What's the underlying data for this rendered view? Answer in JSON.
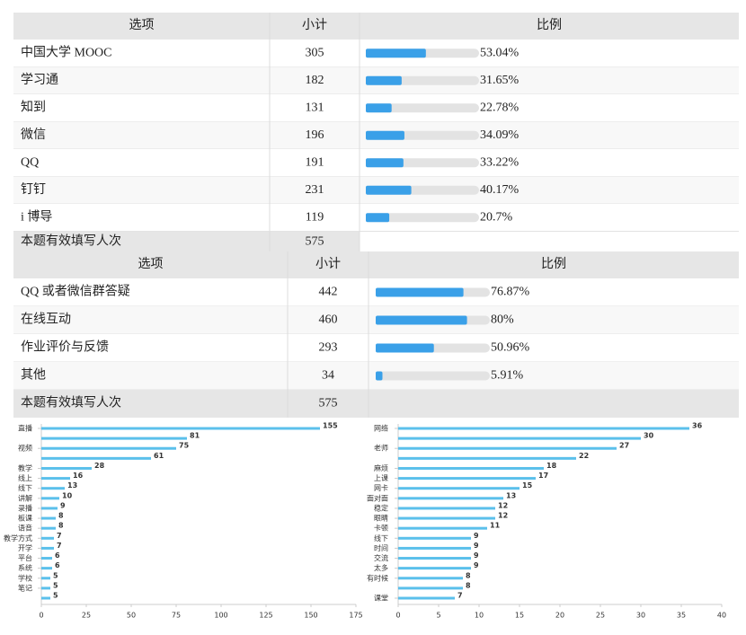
{
  "tables": [
    {
      "headers": [
        "选项",
        "小计",
        "比例"
      ],
      "rows": [
        {
          "option": "中国大学 MOOC",
          "count": 305,
          "ratio": 53.04,
          "ratio_label": "53.04%"
        },
        {
          "option": "学习通",
          "count": 182,
          "ratio": 31.65,
          "ratio_label": "31.65%"
        },
        {
          "option": "知到",
          "count": 131,
          "ratio": 22.78,
          "ratio_label": "22.78%"
        },
        {
          "option": "微信",
          "count": 196,
          "ratio": 34.09,
          "ratio_label": "34.09%"
        },
        {
          "option": "QQ",
          "count": 191,
          "ratio": 33.22,
          "ratio_label": "33.22%"
        },
        {
          "option": "钉钉",
          "count": 231,
          "ratio": 40.17,
          "ratio_label": "40.17%"
        },
        {
          "option": "i 博导",
          "count": 119,
          "ratio": 20.7,
          "ratio_label": "20.7%"
        }
      ],
      "total": {
        "option": "本题有效填写人次",
        "count": 575
      }
    },
    {
      "headers": [
        "选项",
        "小计",
        "比例"
      ],
      "rows": [
        {
          "option": "QQ 或者微信群答疑",
          "count": 442,
          "ratio": 76.87,
          "ratio_label": "76.87%"
        },
        {
          "option": "在线互动",
          "count": 460,
          "ratio": 80,
          "ratio_label": "80%"
        },
        {
          "option": "作业评价与反馈",
          "count": 293,
          "ratio": 50.96,
          "ratio_label": "50.96%"
        },
        {
          "option": "其他",
          "count": 34,
          "ratio": 5.91,
          "ratio_label": "5.91%"
        }
      ],
      "total": {
        "option": "本题有效填写人次",
        "count": 575
      }
    }
  ],
  "chart_data": [
    {
      "type": "hbar",
      "color": "#5bc0eb",
      "categories": [
        "直播",
        null,
        "视频",
        null,
        "教学",
        "线上",
        "线下",
        "讲解",
        "录播",
        "板课",
        "语音",
        "教学方式",
        "开学",
        "平台",
        "系统",
        "学校",
        "笔记",
        null
      ],
      "values": [
        155,
        81,
        75,
        61,
        28,
        16,
        13,
        10,
        9,
        8,
        8,
        7,
        7,
        6,
        6,
        5,
        5,
        5
      ],
      "xlim": [
        0,
        175
      ],
      "xticks": [
        0,
        25,
        50,
        75,
        100,
        125,
        150,
        175
      ]
    },
    {
      "type": "hbar",
      "color": "#5bc0eb",
      "categories": [
        "网络",
        null,
        "老师",
        null,
        "麻烦",
        "上课",
        "网卡",
        "面对面",
        "稳定",
        "眼睛",
        "卡顿",
        "线下",
        "时间",
        "交流",
        "太多",
        "有时候",
        null,
        "课堂"
      ],
      "values": [
        36,
        30,
        27,
        22,
        18,
        17,
        15,
        13,
        12,
        12,
        11,
        9,
        9,
        9,
        9,
        8,
        8,
        7
      ],
      "xlim": [
        0,
        40
      ],
      "xticks": [
        0,
        5,
        10,
        15,
        20,
        25,
        30,
        35,
        40
      ]
    }
  ]
}
